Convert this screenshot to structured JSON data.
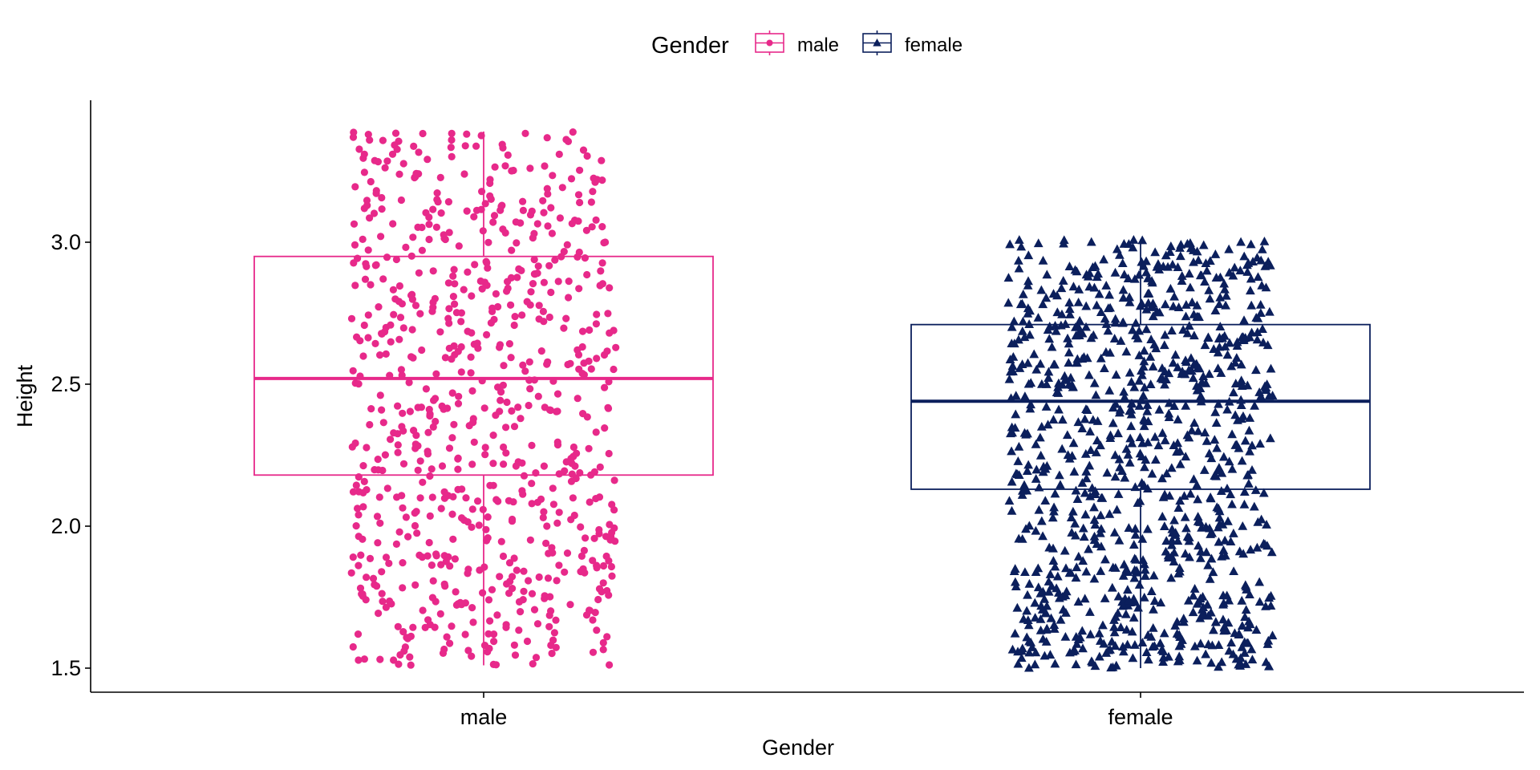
{
  "chart_data": {
    "type": "boxplot",
    "xlabel": "Gender",
    "ylabel": "Height",
    "categories": [
      "male",
      "female"
    ],
    "ylim": [
      1.4,
      3.45
    ],
    "yticks": [
      1.5,
      2.0,
      2.5,
      3.0
    ],
    "ytick_labels": [
      "1.5",
      "2.0",
      "2.5",
      "3.0"
    ],
    "grid": false,
    "legend": {
      "title": "Gender",
      "position": "top",
      "entries": [
        "male",
        "female"
      ]
    },
    "series": [
      {
        "name": "male",
        "color": "#e7298a",
        "marker": "circle",
        "min": 1.51,
        "q1": 2.18,
        "median": 2.52,
        "q3": 2.95,
        "max": 3.39,
        "jitter_points": 760,
        "seed": 7
      },
      {
        "name": "female",
        "color": "#0b1f5c",
        "marker": "triangle",
        "min": 1.5,
        "q1": 2.13,
        "median": 2.44,
        "q3": 2.71,
        "max": 3.01,
        "jitter_points": 1000,
        "seed": 23
      }
    ]
  }
}
